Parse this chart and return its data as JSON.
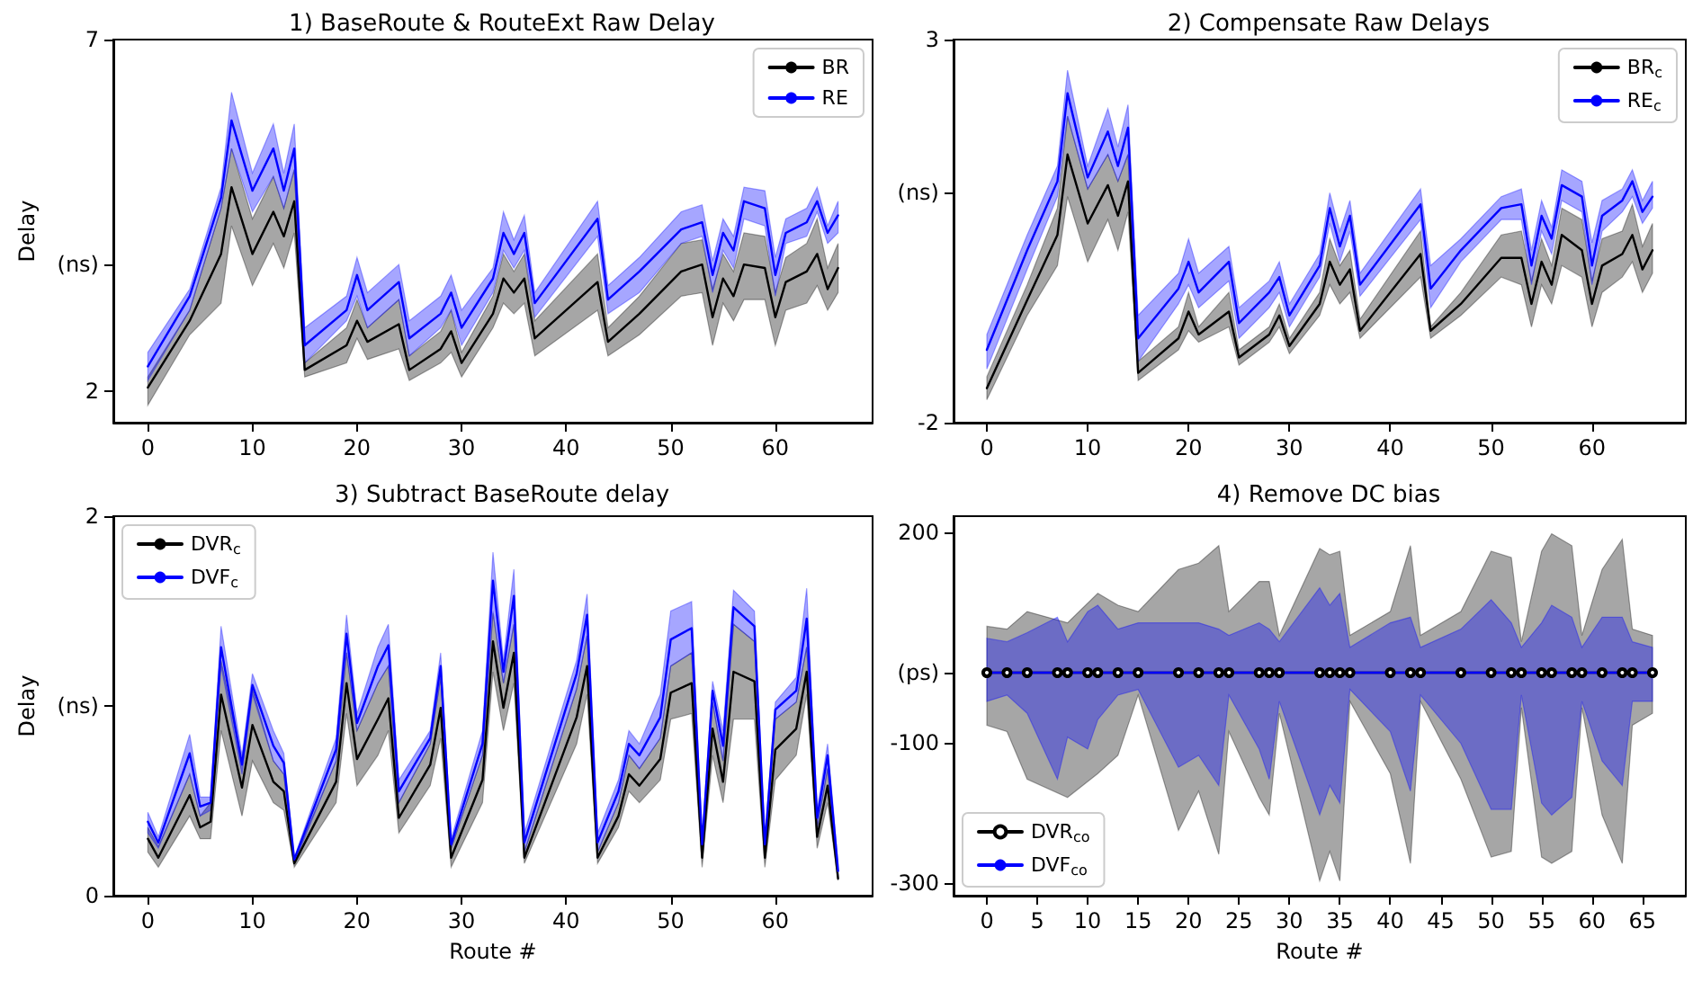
{
  "chart_data": [
    {
      "type": "line",
      "title": "1) BaseRoute & RouteExt Raw Delay",
      "ylabel": "Delay",
      "legend": "top right",
      "x": [
        0,
        4,
        7,
        8,
        10,
        12,
        13,
        14,
        15,
        19,
        20,
        21,
        24,
        25,
        28,
        29,
        30,
        33,
        34,
        35,
        36,
        37,
        43,
        44,
        47,
        51,
        53,
        54,
        55,
        56,
        57,
        59,
        60,
        61,
        63,
        64,
        65,
        66
      ],
      "xlim": [
        -3.3,
        69.3
      ],
      "xticks": [
        0,
        10,
        20,
        30,
        40,
        50,
        60
      ],
      "ylim": [
        1.55,
        7
      ],
      "yticks": [
        2,
        {
          "value": 3.8,
          "label": "(ns)"
        },
        7
      ],
      "series": [
        {
          "name": "BR",
          "color": "#000000",
          "values": [
            2.05,
            3.0,
            3.95,
            4.9,
            3.95,
            4.55,
            4.2,
            4.7,
            2.3,
            2.65,
            3.0,
            2.7,
            2.95,
            2.3,
            2.6,
            2.85,
            2.4,
            3.1,
            3.6,
            3.4,
            3.6,
            2.75,
            3.55,
            2.7,
            3.1,
            3.7,
            3.8,
            3.05,
            3.6,
            3.35,
            3.8,
            3.75,
            3.05,
            3.55,
            3.7,
            3.95,
            3.45,
            3.75
          ],
          "lower": [
            1.8,
            2.8,
            3.25,
            4.35,
            3.5,
            4.1,
            3.75,
            4.25,
            2.2,
            2.4,
            2.75,
            2.45,
            2.6,
            2.15,
            2.4,
            2.55,
            2.2,
            2.9,
            3.25,
            3.1,
            3.25,
            2.5,
            3.15,
            2.5,
            2.8,
            3.35,
            3.4,
            2.65,
            3.25,
            3.0,
            3.3,
            3.3,
            2.65,
            3.15,
            3.25,
            3.5,
            3.15,
            3.4
          ],
          "upper": [
            2.2,
            3.15,
            4.6,
            5.45,
            4.45,
            5.05,
            4.6,
            5.15,
            2.4,
            2.9,
            3.3,
            2.9,
            3.3,
            2.5,
            2.85,
            3.15,
            2.55,
            3.35,
            3.95,
            3.7,
            3.95,
            3.0,
            3.95,
            2.9,
            3.35,
            4.1,
            4.15,
            3.45,
            3.95,
            3.7,
            4.25,
            4.2,
            3.4,
            3.9,
            4.1,
            4.45,
            3.75,
            4.1
          ]
        },
        {
          "name": "RE",
          "color": "#0000ff",
          "values": [
            2.35,
            3.35,
            4.75,
            5.85,
            4.85,
            5.45,
            4.85,
            5.45,
            2.65,
            3.15,
            3.65,
            3.15,
            3.55,
            2.75,
            3.1,
            3.4,
            2.9,
            3.6,
            4.25,
            3.95,
            4.25,
            3.25,
            4.45,
            3.3,
            3.7,
            4.3,
            4.4,
            3.65,
            4.25,
            4.0,
            4.7,
            4.6,
            3.65,
            4.25,
            4.4,
            4.7,
            4.25,
            4.5
          ],
          "lower": [
            2.15,
            3.15,
            4.6,
            5.45,
            4.55,
            5.05,
            4.6,
            5.15,
            2.4,
            3.0,
            3.35,
            2.9,
            3.3,
            2.5,
            2.9,
            3.15,
            2.65,
            3.4,
            4.0,
            3.75,
            4.0,
            3.05,
            4.2,
            3.1,
            3.4,
            4.1,
            4.2,
            3.4,
            4.0,
            3.75,
            4.45,
            4.35,
            3.35,
            4.1,
            4.2,
            4.55,
            4.1,
            4.25
          ],
          "upper": [
            2.55,
            3.45,
            4.9,
            6.25,
            5.1,
            5.8,
            5.1,
            5.8,
            2.9,
            3.35,
            3.9,
            3.4,
            3.8,
            3.0,
            3.35,
            3.65,
            3.15,
            3.75,
            4.55,
            4.15,
            4.5,
            3.4,
            4.7,
            3.5,
            3.9,
            4.55,
            4.65,
            3.85,
            4.45,
            4.2,
            4.9,
            4.85,
            3.9,
            4.45,
            4.6,
            4.9,
            4.35,
            4.7
          ]
        }
      ]
    },
    {
      "type": "line",
      "title": "2) Compensate Raw Delays",
      "legend": "top right",
      "x": [
        0,
        4,
        7,
        8,
        10,
        12,
        13,
        14,
        15,
        19,
        20,
        21,
        24,
        25,
        28,
        29,
        30,
        33,
        34,
        35,
        36,
        37,
        43,
        44,
        47,
        51,
        53,
        54,
        55,
        56,
        57,
        59,
        60,
        61,
        63,
        64,
        65,
        66
      ],
      "xlim": [
        -3.3,
        69.3
      ],
      "xticks": [
        0,
        10,
        20,
        30,
        40,
        50,
        60
      ],
      "ylim": [
        -2,
        3
      ],
      "yticks": [
        -2,
        {
          "value": 1,
          "label": "(ns)"
        },
        3
      ],
      "series": [
        {
          "name": "BR$_{c}$",
          "color": "#000000",
          "values": [
            -1.55,
            -0.4,
            0.45,
            1.5,
            0.6,
            1.1,
            0.7,
            1.15,
            -1.35,
            -0.9,
            -0.55,
            -0.85,
            -0.55,
            -1.15,
            -0.85,
            -0.6,
            -1.0,
            -0.45,
            0.1,
            -0.2,
            0.0,
            -0.8,
            0.2,
            -0.8,
            -0.45,
            0.15,
            0.15,
            -0.45,
            0.1,
            -0.2,
            0.45,
            0.25,
            -0.45,
            0.05,
            0.2,
            0.45,
            0.0,
            0.25
          ],
          "lower": [
            -1.7,
            -0.6,
            0.05,
            0.95,
            0.1,
            0.65,
            0.25,
            0.75,
            -1.45,
            -1.05,
            -0.8,
            -0.95,
            -0.75,
            -1.25,
            -0.95,
            -0.75,
            -1.1,
            -0.6,
            -0.2,
            -0.45,
            -0.3,
            -0.9,
            -0.1,
            -0.9,
            -0.6,
            -0.1,
            -0.2,
            -0.75,
            -0.2,
            -0.45,
            0.05,
            -0.1,
            -0.75,
            -0.3,
            -0.1,
            0.1,
            -0.3,
            -0.05
          ],
          "upper": [
            -1.4,
            -0.2,
            0.8,
            2.0,
            1.05,
            1.5,
            1.15,
            1.5,
            -1.2,
            -0.75,
            -0.3,
            -0.75,
            -0.3,
            -1.05,
            -0.75,
            -0.45,
            -0.9,
            -0.3,
            0.4,
            0.05,
            0.25,
            -0.65,
            0.5,
            -0.75,
            -0.3,
            0.45,
            0.5,
            -0.15,
            0.4,
            0.05,
            0.8,
            0.65,
            -0.15,
            0.4,
            0.5,
            0.85,
            0.3,
            0.6
          ]
        },
        {
          "name": "RE$_{c}$",
          "color": "#0000ff",
          "values": [
            -1.05,
            0.25,
            1.15,
            2.3,
            1.2,
            1.8,
            1.35,
            1.85,
            -0.9,
            -0.25,
            0.1,
            -0.3,
            0.1,
            -0.7,
            -0.3,
            -0.1,
            -0.6,
            0.05,
            0.8,
            0.3,
            0.7,
            -0.2,
            0.85,
            -0.25,
            0.25,
            0.8,
            0.85,
            0.05,
            0.7,
            0.4,
            1.1,
            0.95,
            0.05,
            0.7,
            0.9,
            1.15,
            0.75,
            0.95
          ],
          "lower": [
            -1.3,
            0.0,
            0.95,
            2.0,
            1.05,
            1.5,
            1.15,
            1.5,
            -1.2,
            -0.45,
            -0.2,
            -0.5,
            -0.15,
            -0.9,
            -0.5,
            -0.3,
            -0.75,
            -0.1,
            0.6,
            0.1,
            0.5,
            -0.35,
            0.65,
            -0.5,
            0.1,
            0.65,
            0.65,
            -0.2,
            0.5,
            0.2,
            0.9,
            0.75,
            -0.2,
            0.5,
            0.75,
            0.95,
            0.6,
            0.8
          ],
          "upper": [
            -0.85,
            0.45,
            1.35,
            2.6,
            1.35,
            2.1,
            1.6,
            2.15,
            -0.6,
            -0.05,
            0.4,
            -0.05,
            0.3,
            -0.5,
            -0.15,
            0.1,
            -0.45,
            0.2,
            1.0,
            0.5,
            0.9,
            -0.05,
            1.05,
            0.05,
            0.4,
            0.95,
            1.05,
            0.25,
            0.9,
            0.55,
            1.3,
            1.15,
            0.35,
            0.9,
            1.05,
            1.3,
            0.9,
            1.15
          ]
        }
      ]
    },
    {
      "type": "line",
      "title": "3) Subtract BaseRoute delay",
      "xlabel": "Route #",
      "ylabel": "Delay",
      "legend": "top left",
      "x": [
        0,
        1,
        4,
        5,
        6,
        7,
        9,
        10,
        12,
        13,
        14,
        18,
        19,
        20,
        22,
        23,
        24,
        27,
        28,
        29,
        32,
        33,
        34,
        35,
        36,
        41,
        42,
        43,
        45,
        46,
        47,
        49,
        50,
        52,
        53,
        54,
        55,
        56,
        58,
        59,
        60,
        62,
        63,
        64,
        65,
        66
      ],
      "xlim": [
        -3.3,
        69.3
      ],
      "xticks": [
        0,
        10,
        20,
        30,
        40,
        50,
        60
      ],
      "ylim": [
        0,
        2
      ],
      "yticks": [
        0,
        {
          "value": 1,
          "label": "(ns)"
        },
        2
      ],
      "series": [
        {
          "name": "DVR$_{c}$",
          "color": "#000000",
          "values": [
            0.3,
            0.2,
            0.53,
            0.36,
            0.39,
            1.06,
            0.57,
            0.9,
            0.6,
            0.55,
            0.17,
            0.6,
            1.12,
            0.72,
            0.93,
            1.04,
            0.41,
            0.69,
            0.99,
            0.2,
            0.61,
            1.34,
            0.99,
            1.28,
            0.2,
            0.94,
            1.21,
            0.2,
            0.42,
            0.64,
            0.58,
            0.72,
            1.07,
            1.12,
            0.2,
            0.88,
            0.6,
            1.18,
            1.13,
            0.2,
            0.77,
            0.88,
            1.18,
            0.31,
            0.58,
            0.09
          ],
          "lower": [
            0.23,
            0.15,
            0.42,
            0.3,
            0.3,
            0.87,
            0.42,
            0.71,
            0.49,
            0.45,
            0.15,
            0.49,
            0.96,
            0.58,
            0.74,
            0.87,
            0.33,
            0.58,
            0.83,
            0.15,
            0.49,
            1.18,
            0.87,
            1.12,
            0.17,
            0.8,
            1.06,
            0.17,
            0.36,
            0.55,
            0.49,
            0.61,
            0.93,
            0.96,
            0.15,
            0.74,
            0.49,
            0.93,
            0.93,
            0.15,
            0.61,
            0.74,
            1.06,
            0.25,
            0.49,
            0.08
          ],
          "upper": [
            0.36,
            0.26,
            0.64,
            0.42,
            0.49,
            1.24,
            0.71,
            1.09,
            0.71,
            0.64,
            0.19,
            0.71,
            1.28,
            0.87,
            1.12,
            1.21,
            0.49,
            0.8,
            1.15,
            0.25,
            0.74,
            1.49,
            1.12,
            1.43,
            0.23,
            1.09,
            1.37,
            0.23,
            0.49,
            0.74,
            0.67,
            0.83,
            1.21,
            1.28,
            0.23,
            1.02,
            0.71,
            1.43,
            1.34,
            0.23,
            0.93,
            1.02,
            1.31,
            0.36,
            0.67,
            0.11
          ]
        },
        {
          "name": "DVF$_{c}$",
          "color": "#0000ff",
          "values": [
            0.39,
            0.28,
            0.75,
            0.47,
            0.49,
            1.31,
            0.69,
            1.11,
            0.79,
            0.7,
            0.19,
            0.77,
            1.38,
            0.91,
            1.21,
            1.32,
            0.55,
            0.83,
            1.21,
            0.27,
            0.8,
            1.66,
            1.18,
            1.58,
            0.28,
            1.17,
            1.48,
            0.28,
            0.55,
            0.8,
            0.74,
            0.94,
            1.35,
            1.41,
            0.27,
            1.08,
            0.79,
            1.52,
            1.42,
            0.27,
            0.98,
            1.08,
            1.46,
            0.41,
            0.74,
            0.13
          ],
          "lower": [
            0.33,
            0.25,
            0.64,
            0.42,
            0.45,
            1.21,
            0.64,
            1.06,
            0.71,
            0.64,
            0.17,
            0.71,
            1.28,
            0.87,
            1.12,
            1.21,
            0.49,
            0.8,
            1.15,
            0.25,
            0.74,
            1.5,
            1.12,
            1.43,
            0.23,
            1.09,
            1.37,
            0.23,
            0.49,
            0.74,
            0.67,
            0.83,
            1.21,
            1.28,
            0.23,
            1.02,
            0.71,
            1.43,
            1.34,
            0.23,
            0.93,
            1.02,
            1.31,
            0.36,
            0.67,
            0.09
          ],
          "upper": [
            0.44,
            0.31,
            0.85,
            0.52,
            0.52,
            1.42,
            0.74,
            1.17,
            0.87,
            0.75,
            0.2,
            0.83,
            1.48,
            0.96,
            1.31,
            1.43,
            0.61,
            0.87,
            1.28,
            0.3,
            0.87,
            1.81,
            1.24,
            1.72,
            0.33,
            1.24,
            1.59,
            0.33,
            0.61,
            0.87,
            0.8,
            1.06,
            1.5,
            1.55,
            0.3,
            1.13,
            0.87,
            1.61,
            1.5,
            0.3,
            1.02,
            1.15,
            1.62,
            0.45,
            0.8,
            0.17
          ]
        }
      ]
    },
    {
      "type": "line",
      "title": "4) Remove DC bias",
      "xlabel": "Route #",
      "legend": "bottom left",
      "x": [
        0,
        2,
        4,
        7,
        8,
        10,
        11,
        13,
        15,
        19,
        21,
        23,
        24,
        27,
        28,
        29,
        33,
        34,
        35,
        36,
        40,
        42,
        43,
        47,
        50,
        52,
        53,
        55,
        56,
        58,
        59,
        61,
        63,
        64,
        66
      ],
      "xlim": [
        -3.3,
        69.3
      ],
      "xticks": [
        0,
        5,
        10,
        15,
        20,
        25,
        30,
        35,
        40,
        45,
        50,
        55,
        60,
        65
      ],
      "ylim": [
        -318,
        223
      ],
      "yticks": [
        -300,
        -100,
        {
          "value": 0,
          "label": "(ps)"
        },
        200
      ],
      "series": [
        {
          "name": "DVR$_{co}$",
          "color": "#000000",
          "marker": "circle",
          "values": [
            0,
            0,
            0,
            0,
            0,
            0,
            0,
            0,
            0,
            0,
            0,
            0,
            0,
            0,
            0,
            0,
            0,
            0,
            0,
            0,
            0,
            0,
            0,
            0,
            0,
            0,
            0,
            0,
            0,
            0,
            0,
            0,
            0,
            0,
            0
          ],
          "lower": [
            -75,
            -84,
            -152,
            null,
            -178,
            null,
            -144,
            -118,
            -32,
            -225,
            -169,
            -259,
            -84,
            -178,
            -203,
            -58,
            -297,
            -255,
            -297,
            -41,
            -144,
            -272,
            -41,
            -152,
            -263,
            -255,
            -50,
            -263,
            -272,
            -255,
            -50,
            -203,
            -272,
            -75,
            -58
          ],
          "upper": [
            66,
            62,
            87,
            null,
            71,
            null,
            113,
            96,
            87,
            147,
            156,
            181,
            87,
            130,
            130,
            53,
            177,
            168,
            173,
            53,
            87,
            181,
            53,
            87,
            173,
            164,
            44,
            173,
            198,
            181,
            53,
            147,
            190,
            62,
            53
          ]
        },
        {
          "name": "DVF$_{co}$",
          "color": "#0000ff",
          "values": [
            0,
            0,
            0,
            0,
            0,
            0,
            0,
            0,
            0,
            0,
            0,
            0,
            0,
            0,
            0,
            0,
            0,
            0,
            0,
            0,
            0,
            0,
            0,
            0,
            0,
            0,
            0,
            0,
            0,
            0,
            0,
            0,
            0,
            0,
            0
          ],
          "lower": [
            -41,
            -32,
            -58,
            -152,
            -92,
            -109,
            -67,
            -32,
            -24,
            -135,
            -118,
            -161,
            -32,
            -109,
            -152,
            -41,
            -203,
            -161,
            -186,
            -24,
            -84,
            -169,
            -32,
            -101,
            -195,
            -195,
            -32,
            -186,
            -203,
            -178,
            -41,
            -126,
            -161,
            -41,
            -41
          ],
          "upper": [
            49,
            44,
            57,
            79,
            44,
            87,
            96,
            62,
            71,
            71,
            71,
            62,
            53,
            71,
            62,
            44,
            121,
            96,
            113,
            36,
            71,
            79,
            36,
            62,
            104,
            71,
            36,
            71,
            96,
            79,
            36,
            79,
            79,
            44,
            36
          ]
        }
      ]
    }
  ]
}
